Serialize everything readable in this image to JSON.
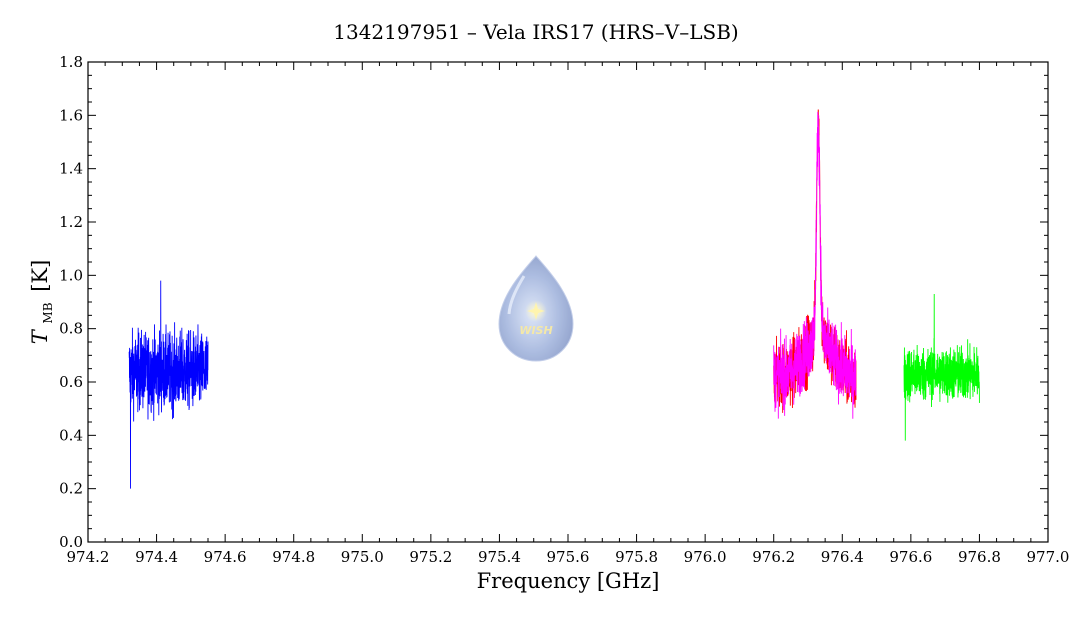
{
  "chart_data": {
    "type": "line",
    "title": "1342197951 – Vela IRS17 (HRS–V–LSB)",
    "xlabel": "Frequency [GHz]",
    "ylabel_main": "T",
    "ylabel_sub": "MB",
    "ylabel_unit": "[K]",
    "xlim": [
      974.2,
      977.0
    ],
    "ylim": [
      0.0,
      1.8
    ],
    "x_ticks": [
      "974.2",
      "974.4",
      "974.6",
      "974.8",
      "975.0",
      "975.2",
      "975.4",
      "975.6",
      "975.8",
      "976.0",
      "976.2",
      "976.4",
      "976.6",
      "976.8",
      "977.0"
    ],
    "y_ticks": [
      "0.0",
      "0.2",
      "0.4",
      "0.6",
      "0.8",
      "1.0",
      "1.2",
      "1.4",
      "1.6",
      "1.8"
    ],
    "grid": false,
    "series": [
      {
        "color": "#0000ff",
        "x_range": [
          974.32,
          974.55
        ],
        "baseline": 0.64,
        "noise": 0.13,
        "min": 0.2,
        "max": 0.98
      },
      {
        "color": "#ff0000",
        "x_range": [
          976.2,
          976.44
        ],
        "baseline": 0.62,
        "noise": 0.11,
        "peak_x": 976.33,
        "peak_y": 1.62,
        "line_base": 0.64
      },
      {
        "color": "#ff00ff",
        "x_range": [
          976.2,
          976.44
        ],
        "baseline": 0.62,
        "noise": 0.11,
        "peak_x": 976.33,
        "peak_y": 1.6,
        "line_base": 0.64
      },
      {
        "color": "#00ff00",
        "x_range": [
          976.58,
          976.8
        ],
        "baseline": 0.63,
        "noise": 0.09,
        "min": 0.38,
        "max": 0.93
      }
    ],
    "logo_text": "WISH"
  }
}
